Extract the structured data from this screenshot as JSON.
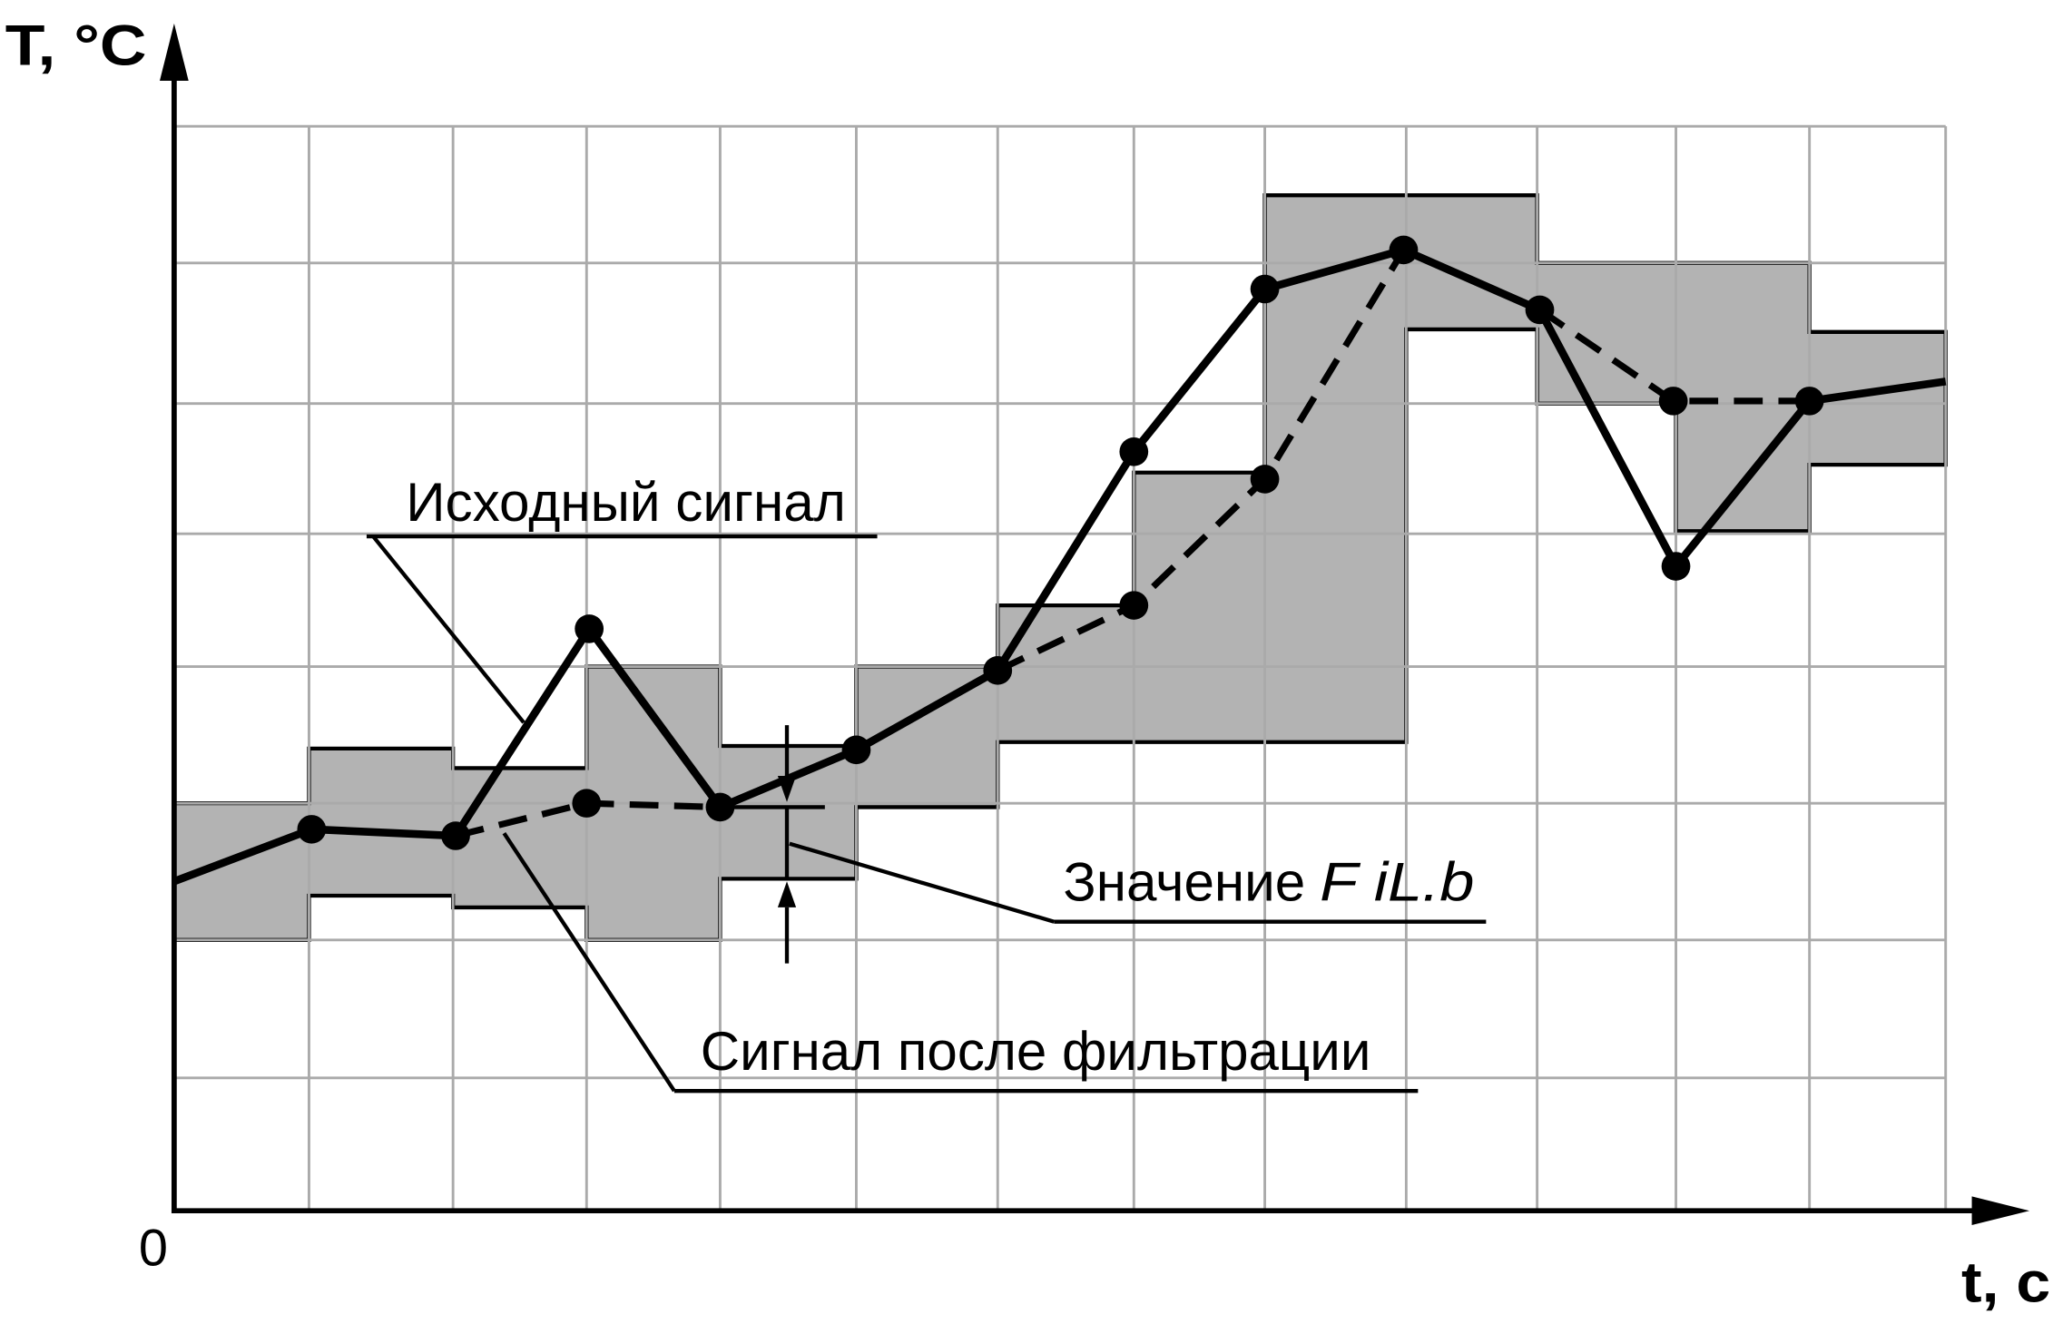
{
  "axes": {
    "y_label": "T, °C",
    "x_label": "t, с",
    "origin": "0"
  },
  "annotations": {
    "source_signal": "Исходный сигнал",
    "filtered_signal": "Сигнал после фильтрации",
    "value": "Значение",
    "parameter": "F iL.b"
  }
}
